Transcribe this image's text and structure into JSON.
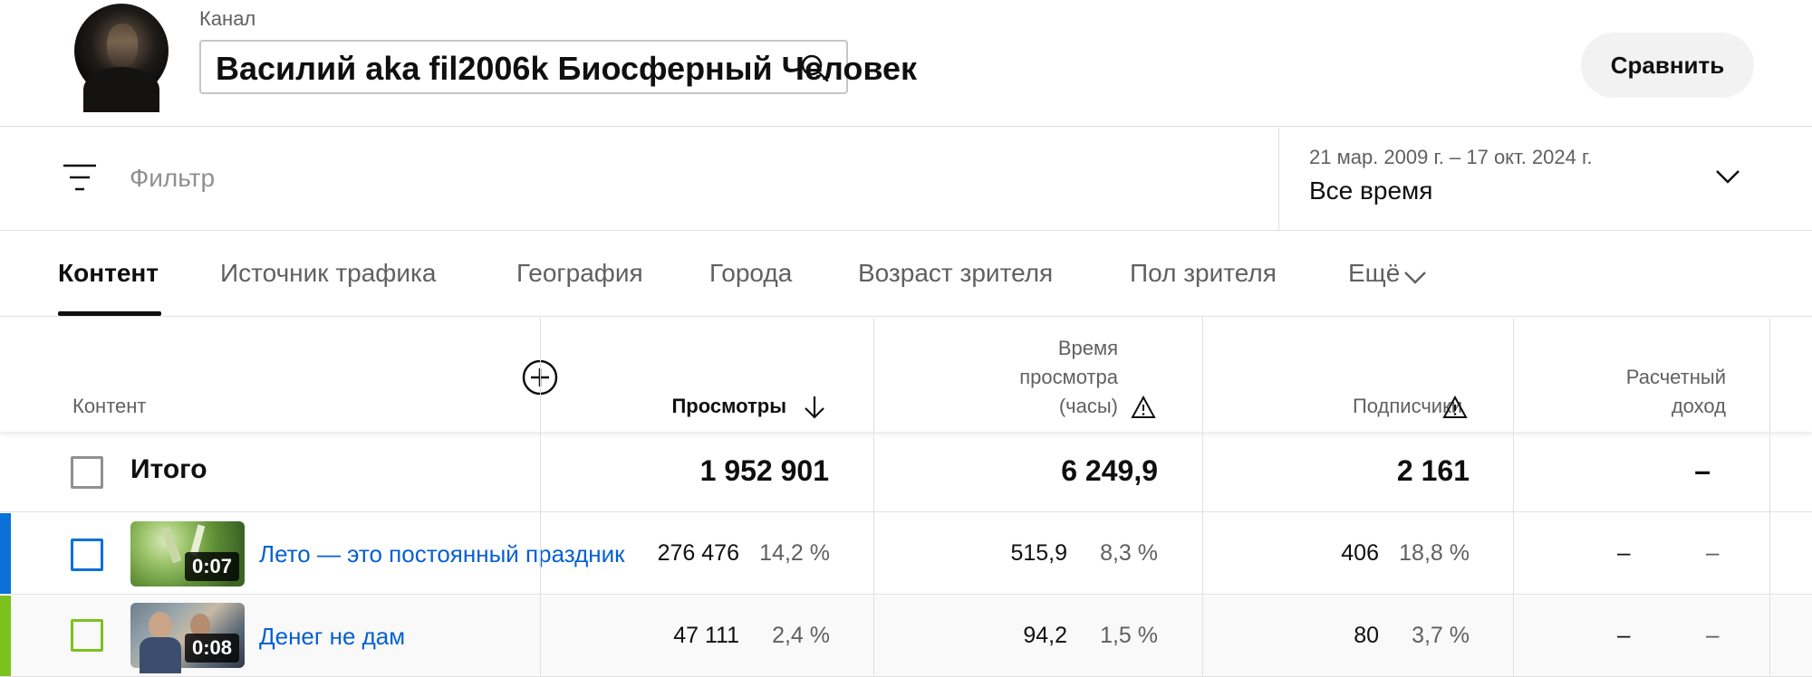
{
  "header": {
    "channel_label": "Канал",
    "channel_name": "Василий aka fil2006k Биосферный Человек",
    "compare_label": "Сравнить"
  },
  "filter": {
    "placeholder": "Фильтр",
    "date_range": "21 мар. 2009 г. – 17 окт. 2024 г.",
    "date_period": "Все время"
  },
  "tabs": [
    {
      "label": "Контент"
    },
    {
      "label": "Источник трафика"
    },
    {
      "label": "География"
    },
    {
      "label": "Города"
    },
    {
      "label": "Возраст зрителя"
    },
    {
      "label": "Пол зрителя"
    },
    {
      "label": "Ещё"
    }
  ],
  "table": {
    "headers": {
      "content": "Контент",
      "views": "Просмотры",
      "watch_time_line1": "Время",
      "watch_time_line2": "просмотра",
      "watch_time_line3": "(часы)",
      "subscribers": "Подписчики",
      "revenue_line1": "Расчетный",
      "revenue_line2": "доход"
    },
    "total": {
      "label": "Итого",
      "views": "1 952 901",
      "watch_time": "6 249,9",
      "subscribers": "2 161",
      "revenue": "–"
    },
    "rows": [
      {
        "title": "Лето — это постоянный праздник",
        "duration": "0:07",
        "views": "276 476",
        "views_pct": "14,2 %",
        "watch_time": "515,9",
        "watch_time_pct": "8,3 %",
        "subscribers": "406",
        "subscribers_pct": "18,8 %",
        "revenue": "–",
        "revenue_pct": "–",
        "accent": "#0b71d8"
      },
      {
        "title": "Денег не дам",
        "duration": "0:08",
        "views": "47 111",
        "views_pct": "2,4 %",
        "watch_time": "94,2",
        "watch_time_pct": "1,5 %",
        "subscribers": "80",
        "subscribers_pct": "3,7 %",
        "revenue": "–",
        "revenue_pct": "–",
        "accent": "#7cc21f"
      }
    ]
  }
}
